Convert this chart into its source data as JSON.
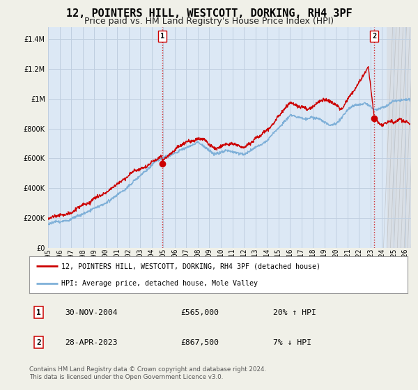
{
  "title": "12, POINTERS HILL, WESTCOTT, DORKING, RH4 3PF",
  "subtitle": "Price paid vs. HM Land Registry's House Price Index (HPI)",
  "ytick_values": [
    0,
    200000,
    400000,
    600000,
    800000,
    1000000,
    1200000,
    1400000
  ],
  "ylim": [
    0,
    1480000
  ],
  "xlim_start": 1995.0,
  "xlim_end": 2026.5,
  "xticks": [
    1995,
    1996,
    1997,
    1998,
    1999,
    2000,
    2001,
    2002,
    2003,
    2004,
    2005,
    2006,
    2007,
    2008,
    2009,
    2010,
    2011,
    2012,
    2013,
    2014,
    2015,
    2016,
    2017,
    2018,
    2019,
    2020,
    2021,
    2022,
    2023,
    2024,
    2025,
    2026
  ],
  "red_line_color": "#cc0000",
  "blue_line_color": "#7fb0d8",
  "sale1_x": 2004.92,
  "sale1_y": 565000,
  "sale1_label": "1",
  "sale2_x": 2023.33,
  "sale2_y": 867500,
  "sale2_label": "2",
  "vline1_x": 2004.92,
  "vline2_x": 2023.33,
  "vline_color": "#cc0000",
  "vline_style": ":",
  "legend_label_red": "12, POINTERS HILL, WESTCOTT, DORKING, RH4 3PF (detached house)",
  "legend_label_blue": "HPI: Average price, detached house, Mole Valley",
  "table_rows": [
    {
      "num": "1",
      "date": "30-NOV-2004",
      "price": "£565,000",
      "hpi": "20% ↑ HPI"
    },
    {
      "num": "2",
      "date": "28-APR-2023",
      "price": "£867,500",
      "hpi": "7% ↓ HPI"
    }
  ],
  "footer": "Contains HM Land Registry data © Crown copyright and database right 2024.\nThis data is licensed under the Open Government Licence v3.0.",
  "background_color": "#f0f0e8",
  "plot_bg_color": "#dce8f5",
  "grid_color": "#c0cfe0",
  "stripe_color": "#c8c8c8",
  "title_fontsize": 11,
  "subtitle_fontsize": 9,
  "tick_fontsize": 7,
  "label_box_color": "#cc0000"
}
